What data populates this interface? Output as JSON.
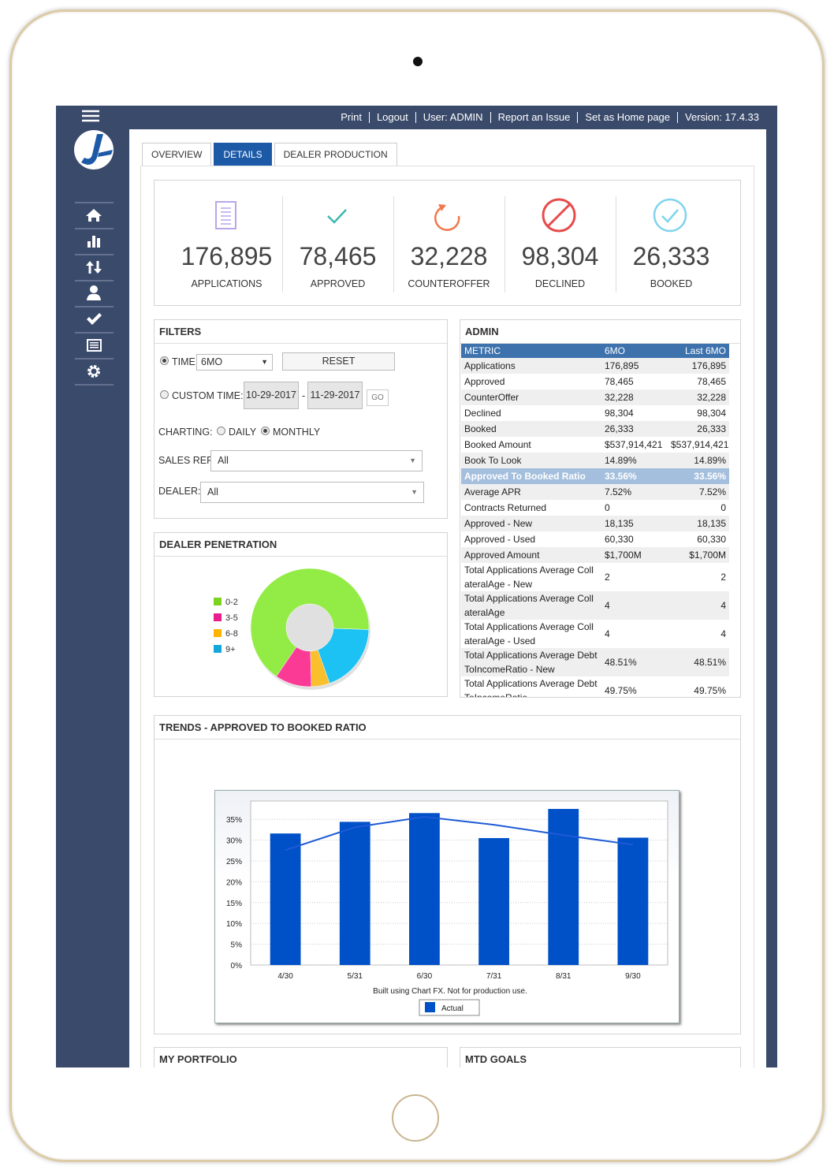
{
  "topbar": {
    "links": [
      "Print",
      "Logout",
      "User: ADMIN",
      "Report an Issue",
      "Set as Home page",
      "Version: 17.4.33"
    ]
  },
  "tabs": {
    "items": [
      "OVERVIEW",
      "DETAILS",
      "DEALER PRODUCTION"
    ],
    "active": 1
  },
  "kpis": [
    {
      "value": "176,895",
      "label": "APPLICATIONS"
    },
    {
      "value": "78,465",
      "label": "APPROVED"
    },
    {
      "value": "32,228",
      "label": "COUNTEROFFER"
    },
    {
      "value": "98,304",
      "label": "DECLINED"
    },
    {
      "value": "26,333",
      "label": "BOOKED"
    }
  ],
  "filters": {
    "title": "FILTERS",
    "time_label": "TIME",
    "time_value": "6MO",
    "reset": "RESET",
    "custom_time_label": "CUSTOM TIME:",
    "date_from": "10-29-2017",
    "date_sep": "-",
    "date_to": "11-29-2017",
    "go": "GO",
    "charting_label": "CHARTING:",
    "daily": "DAILY",
    "monthly": "MONTHLY",
    "sales_rep_label": "SALES REP:",
    "sales_rep_value": "All",
    "dealer_label": "DEALER:",
    "dealer_value": "All"
  },
  "admin": {
    "title": "ADMIN",
    "columns": [
      "METRIC",
      "6MO",
      "Last 6MO"
    ],
    "highlight_row": 7,
    "rows": [
      [
        "Applications",
        "176,895",
        "176,895"
      ],
      [
        "Approved",
        "78,465",
        "78,465"
      ],
      [
        "CounterOffer",
        "32,228",
        "32,228"
      ],
      [
        "Declined",
        "98,304",
        "98,304"
      ],
      [
        "Booked",
        "26,333",
        "26,333"
      ],
      [
        "Booked Amount",
        "$537,914,421",
        "$537,914,421"
      ],
      [
        "Book To Look",
        "14.89%",
        "14.89%"
      ],
      [
        "Approved To Booked Ratio",
        "33.56%",
        "33.56%"
      ],
      [
        "Average APR",
        "7.52%",
        "7.52%"
      ],
      [
        "Contracts Returned",
        "0",
        "0"
      ],
      [
        "Approved - New",
        "18,135",
        "18,135"
      ],
      [
        "Approved - Used",
        "60,330",
        "60,330"
      ],
      [
        "Approved Amount",
        "$1,700M",
        "$1,700M"
      ],
      [
        "Total Applications Average CollateralAge - New",
        "2",
        "2"
      ],
      [
        "Total Applications Average CollateralAge",
        "4",
        "4"
      ],
      [
        "Total Applications Average CollateralAge - Used",
        "4",
        "4"
      ],
      [
        "Total Applications Average DebtToIncomeRatio - New",
        "48.51%",
        "48.51%"
      ],
      [
        "Total Applications Average DebtToIncomeRatio",
        "49.75%",
        "49.75%"
      ]
    ]
  },
  "chart_data": [
    {
      "type": "donut",
      "title": "DEALER PENETRATION",
      "categories": [
        "0-2",
        "3-5",
        "6-8",
        "9+"
      ],
      "values": [
        66,
        10,
        5,
        19
      ],
      "colors": [
        "#93ec45",
        "#fb3a96",
        "#f9bf2c",
        "#1cc2f3"
      ],
      "legend_colors": [
        "#7ed321",
        "#e91e8c",
        "#ffb300",
        "#12a8dc"
      ]
    },
    {
      "type": "bar",
      "title": "TRENDS - APPROVED TO BOOKED RATIO",
      "categories": [
        "4/30",
        "5/31",
        "6/30",
        "7/31",
        "8/31",
        "9/30"
      ],
      "series": [
        {
          "name": "Actual",
          "type": "bar",
          "color": "#0050c8",
          "values": [
            31.6,
            34.4,
            36.5,
            30.5,
            37.5,
            30.6
          ]
        },
        {
          "type": "line",
          "color": "#1e5bd6",
          "values": [
            27.6,
            33.1,
            35.6,
            33.7,
            31.2,
            28.9
          ]
        }
      ],
      "ylim": [
        0,
        39.4
      ],
      "yticks": [
        {
          "value": 0,
          "label": "0%"
        },
        {
          "value": 5,
          "label": "5%"
        },
        {
          "value": 10,
          "label": "10%"
        },
        {
          "value": 15,
          "label": "15%"
        },
        {
          "value": 20,
          "label": "20%"
        },
        {
          "value": 25,
          "label": "25%"
        },
        {
          "value": 30,
          "label": "30%"
        },
        {
          "value": 35,
          "label": "35%"
        }
      ],
      "grid": true,
      "footnote": "Built using Chart FX. Not for production use."
    }
  ],
  "panels": {
    "portfolio": "MY PORTFOLIO",
    "goals": "MTD GOALS"
  }
}
